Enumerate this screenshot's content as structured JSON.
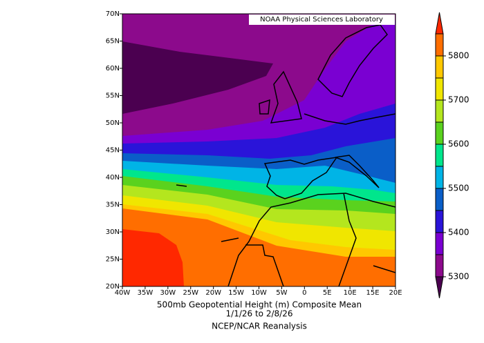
{
  "map": {
    "credit": "NOAA Physical Sciences Laboratory",
    "title": "500mb Geopotential Height (m) Composite Mean",
    "dates": "1/1/26  to 2/8/26",
    "source": "NCEP/NCAR Reanalysis",
    "xlim": [
      -40,
      20
    ],
    "ylim": [
      20,
      70
    ],
    "xticks": [
      {
        "value": -40,
        "label": "40W"
      },
      {
        "value": -35,
        "label": "35W"
      },
      {
        "value": -30,
        "label": "30W"
      },
      {
        "value": -25,
        "label": "25W"
      },
      {
        "value": -20,
        "label": "20W"
      },
      {
        "value": -15,
        "label": "15W"
      },
      {
        "value": -10,
        "label": "10W"
      },
      {
        "value": -5,
        "label": "5W"
      },
      0,
      {
        "value": 5,
        "label": "5E"
      },
      {
        "value": 10,
        "label": "10E"
      },
      {
        "value": 15,
        "label": "15E"
      },
      {
        "value": 20,
        "label": "20E"
      }
    ],
    "yticks": [
      {
        "value": 20,
        "label": "20N"
      },
      {
        "value": 25,
        "label": "25N"
      },
      {
        "value": 30,
        "label": "30N"
      },
      {
        "value": 35,
        "label": "35N"
      },
      {
        "value": 40,
        "label": "40N"
      },
      {
        "value": 45,
        "label": "45N"
      },
      {
        "value": 50,
        "label": "50N"
      },
      {
        "value": 55,
        "label": "55N"
      },
      {
        "value": 60,
        "label": "60N"
      },
      {
        "value": 65,
        "label": "65N"
      },
      {
        "value": 70,
        "label": "70N"
      }
    ],
    "colorbar": {
      "levels": [
        5300,
        5350,
        5400,
        5450,
        5500,
        5550,
        5600,
        5650,
        5700,
        5750,
        5800,
        5850
      ],
      "ticks": [
        5300,
        5400,
        5500,
        5600,
        5700,
        5800
      ],
      "colors": [
        "#4b0050",
        "#8c0a8c",
        "#7a00d2",
        "#2a14d9",
        "#0a5ec8",
        "#00b4e6",
        "#00e68c",
        "#5ad21e",
        "#b4e61e",
        "#f0e600",
        "#ffc800",
        "#ff6e00",
        "#ff2800"
      ]
    }
  }
}
